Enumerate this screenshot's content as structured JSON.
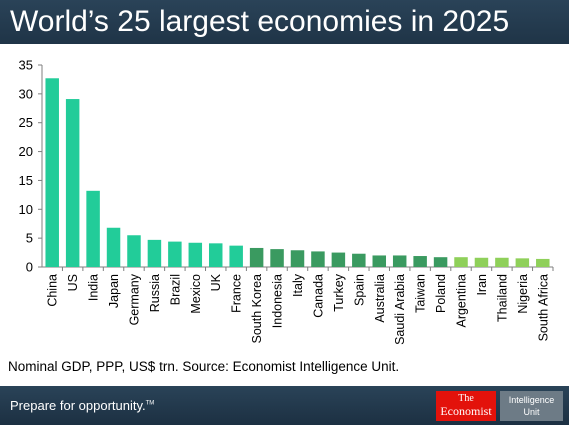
{
  "title": "World’s 25 largest economies in 2025",
  "source_note": "Nominal GDP, PPP, US$ trn. Source: Economist Intelligence Unit.",
  "footer": {
    "tagline": "Prepare for opportunity.",
    "tagline_mark": "TM",
    "economist_logo_line1": "The",
    "economist_logo_line2": "Economist",
    "eiu_logo_line1": "Intelligence",
    "eiu_logo_line2": "Unit"
  },
  "colors": {
    "header_background": "#243c51",
    "economist_red": "#e3120b",
    "eiu_grey": "#6d7b86"
  },
  "chart_data": {
    "type": "bar",
    "title": "World’s 25 largest economies in 2025",
    "xlabel": "",
    "ylabel": "",
    "ylim": [
      0,
      35
    ],
    "yticks": [
      0,
      5,
      10,
      15,
      20,
      25,
      30,
      35
    ],
    "grid": false,
    "legend": "none",
    "categories": [
      "China",
      "US",
      "India",
      "Japan",
      "Germany",
      "Russia",
      "Brazil",
      "Mexico",
      "UK",
      "France",
      "South Korea",
      "Indonesia",
      "Italy",
      "Canada",
      "Turkey",
      "Spain",
      "Australia",
      "Saudi Arabia",
      "Taiwan",
      "Poland",
      "Argentina",
      "Iran",
      "Thailand",
      "Nigeria",
      "South Africa"
    ],
    "values": [
      32.7,
      29.1,
      13.2,
      6.8,
      5.5,
      4.7,
      4.4,
      4.2,
      4.1,
      3.7,
      3.3,
      3.1,
      2.9,
      2.7,
      2.5,
      2.3,
      2.0,
      2.0,
      1.9,
      1.7,
      1.7,
      1.6,
      1.6,
      1.5,
      1.4
    ],
    "bar_colors": [
      "#22cc99",
      "#22cc99",
      "#22cc99",
      "#22cc99",
      "#22cc99",
      "#22cc99",
      "#22cc99",
      "#22cc99",
      "#22cc99",
      "#22cc99",
      "#3a9a60",
      "#3a9a60",
      "#3a9a60",
      "#3a9a60",
      "#3a9a60",
      "#3a9a60",
      "#3a9a60",
      "#3a9a60",
      "#3a9a60",
      "#3a9a60",
      "#8fd05a",
      "#8fd05a",
      "#8fd05a",
      "#8fd05a",
      "#8fd05a"
    ]
  }
}
